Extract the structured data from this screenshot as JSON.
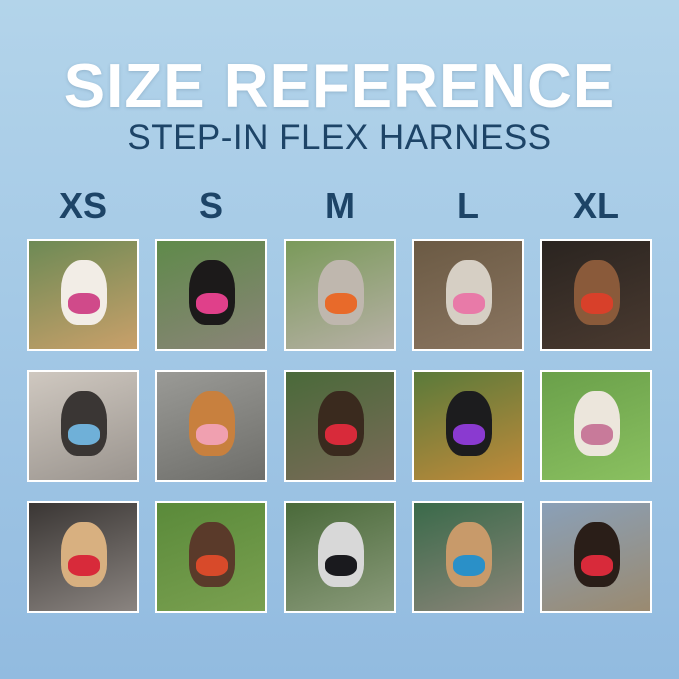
{
  "title": "SIZE REFERENCE",
  "subtitle": "STEP-IN FLEX HARNESS",
  "sizes": [
    "XS",
    "S",
    "M",
    "L",
    "XL"
  ],
  "colors": {
    "title": "#ffffff",
    "subtitle": "#1d4467",
    "background": "#a4c9e6"
  },
  "photos": [
    [
      {
        "bg": "#6d8a55,#c9a06a",
        "dog": "#f2ede6",
        "harness": "#d04a8a"
      },
      {
        "bg": "#5f8a4a,#8a8478",
        "dog": "#1c1a1a",
        "harness": "#e0408a"
      },
      {
        "bg": "#7a9a5a,#b7b0a6",
        "dog": "#bfb7ae",
        "harness": "#e86a2a"
      },
      {
        "bg": "#6b5a44,#8a7560",
        "dog": "#d6cfc4",
        "harness": "#e87aa8"
      },
      {
        "bg": "#2a2420,#4a3a30",
        "dog": "#8a5a3a",
        "harness": "#d8402a"
      }
    ],
    [
      {
        "bg": "#cfc8c0,#9a948e",
        "dog": "#3a3634",
        "harness": "#6fb0d8"
      },
      {
        "bg": "#9a9a96,#6e6e6a",
        "dog": "#c8803e",
        "harness": "#f0a0b0"
      },
      {
        "bg": "#4a6a3a,#7a6a58",
        "dog": "#3a2a1e",
        "harness": "#d82a3a"
      },
      {
        "bg": "#5a7a3a,#c08a3a",
        "dog": "#1c1c1e",
        "harness": "#8a3ad0"
      },
      {
        "bg": "#6aa04a,#8ac060",
        "dog": "#ece6dc",
        "harness": "#c87a9a"
      }
    ],
    [
      {
        "bg": "#3a3634,#8a8480",
        "dog": "#d8b080",
        "harness": "#d82a3a"
      },
      {
        "bg": "#5a8a3a,#7aa050",
        "dog": "#5a3a2a",
        "harness": "#d84a2a"
      },
      {
        "bg": "#4a6a3a,#8a9a7a",
        "dog": "#d8d8d8",
        "harness": "#1a1a1e"
      },
      {
        "bg": "#3a6a4a,#8a8478",
        "dog": "#c89a6a",
        "harness": "#2a90c8"
      },
      {
        "bg": "#8aa0b8,#9a8a70",
        "dog": "#2a1e18",
        "harness": "#d82a3a"
      }
    ]
  ]
}
